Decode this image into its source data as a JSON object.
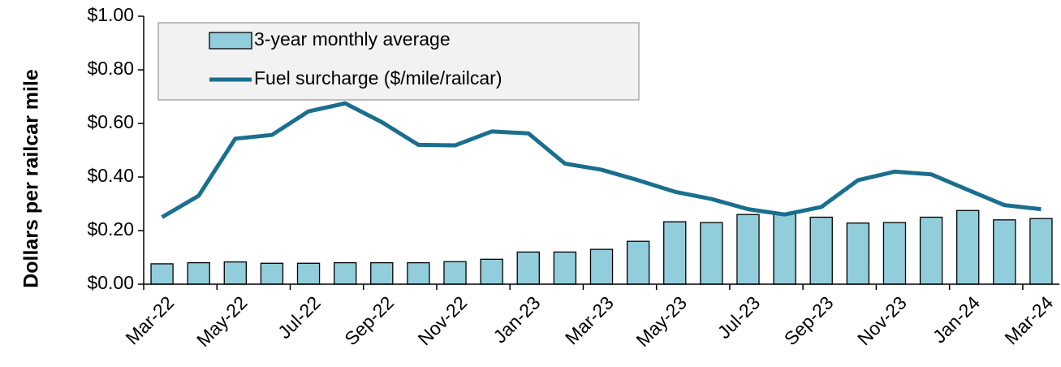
{
  "chart_data": {
    "type": "bar",
    "y_label": "Dollars per railcar mile",
    "categories": [
      "Mar-22",
      null,
      "May-22",
      null,
      "Jul-22",
      null,
      "Sep-22",
      null,
      "Nov-22",
      null,
      "Jan-23",
      null,
      "Mar-23",
      null,
      "May-23",
      null,
      "Jul-23",
      null,
      "Sep-23",
      null,
      "Nov-23",
      null,
      "Jan-24",
      null,
      "Mar-24"
    ],
    "series": [
      {
        "name": "3-year monthly average",
        "type": "bar",
        "color": "#92cddc",
        "values": [
          0.076,
          0.08,
          0.083,
          0.078,
          0.078,
          0.08,
          0.08,
          0.08,
          0.084,
          0.093,
          0.12,
          0.12,
          0.13,
          0.16,
          0.233,
          0.23,
          0.26,
          0.265,
          0.25,
          0.228,
          0.23,
          0.25,
          0.275,
          0.24,
          0.245
        ]
      },
      {
        "name": "Fuel surcharge ($/mile/railcar)",
        "type": "line",
        "color": "#1a6f8e",
        "values": [
          0.25,
          0.33,
          0.543,
          0.557,
          0.645,
          0.675,
          0.605,
          0.52,
          0.518,
          0.57,
          0.563,
          0.45,
          0.427,
          0.388,
          0.345,
          0.318,
          0.28,
          0.26,
          0.288,
          0.388,
          0.42,
          0.41,
          0.352,
          0.295,
          0.28
        ]
      }
    ],
    "ylim": [
      0,
      1
    ],
    "yticks": [
      {
        "value": 0,
        "label": "$0.00"
      },
      {
        "value": 0.2,
        "label": "$0.20"
      },
      {
        "value": 0.4,
        "label": "$0.40"
      },
      {
        "value": 0.6,
        "label": "$0.60"
      },
      {
        "value": 0.8,
        "label": "$0.80"
      },
      {
        "value": 1,
        "label": "$1.00"
      }
    ],
    "grid": false
  }
}
